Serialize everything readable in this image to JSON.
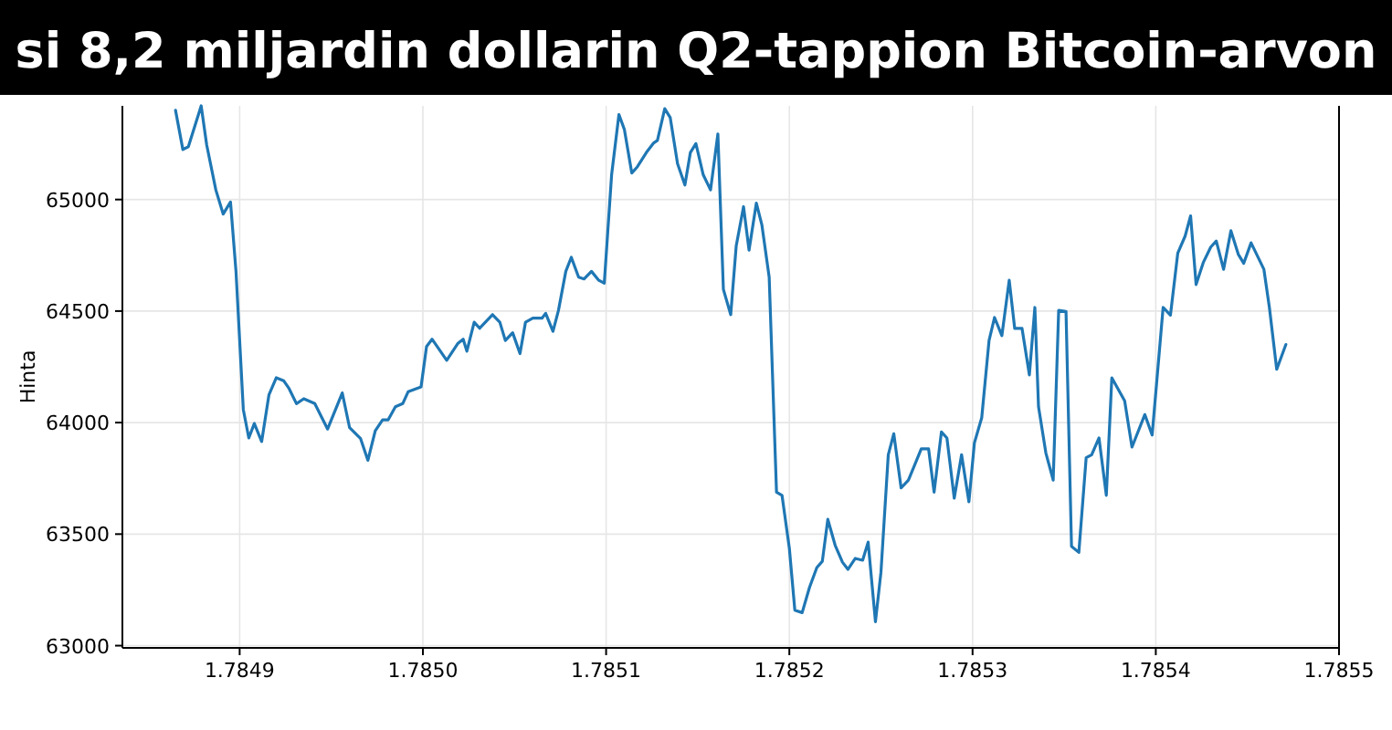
{
  "chart_data": {
    "type": "line",
    "title": "si 8,2 miljardin dollarin Q2-tappion Bitcoin-arvon",
    "ylabel": "Hinta",
    "xlim": [
      1.784836,
      1.7855
    ],
    "ylim": [
      62990,
      65420
    ],
    "xticks": [
      1.7849,
      {
        "value": 1.785,
        "label": "1.7850"
      },
      1.7851,
      1.7852,
      1.7853,
      1.7854,
      1.7855
    ],
    "yticks": [
      63000,
      63500,
      64000,
      64500,
      65000
    ],
    "grid": true,
    "series": [
      {
        "color": "#1f77b4",
        "x": [
          1.784865,
          1.784869,
          1.784872,
          1.784879,
          1.784882,
          1.784887,
          1.784891,
          1.784895,
          1.784898,
          1.784902,
          1.784905,
          1.784908,
          1.784912,
          1.784916,
          1.78492,
          1.784924,
          1.784927,
          1.784931,
          1.784935,
          1.784941,
          1.784948,
          1.784956,
          1.78496,
          1.784966,
          1.78497,
          1.784974,
          1.784978,
          1.784981,
          1.784985,
          1.784989,
          1.784992,
          1.784999,
          1.785002,
          1.785005,
          1.785013,
          1.785019,
          1.785022,
          1.785024,
          1.785028,
          1.785031,
          1.785038,
          1.785042,
          1.785045,
          1.785049,
          1.785053,
          1.785056,
          1.78506,
          1.785065,
          1.785067,
          1.785071,
          1.785074,
          1.785078,
          1.785081,
          1.785085,
          1.785088,
          1.785092,
          1.785096,
          1.785099,
          1.785103,
          1.785107,
          1.78511,
          1.785114,
          1.785117,
          1.785122,
          1.785126,
          1.785128,
          1.785132,
          1.785135,
          1.785139,
          1.785143,
          1.785146,
          1.785149,
          1.785153,
          1.785157,
          1.785161,
          1.785164,
          1.785168,
          1.785171,
          1.785175,
          1.785178,
          1.785182,
          1.785185,
          1.785189,
          1.785193,
          1.785196,
          1.7852,
          1.785203,
          1.785207,
          1.785211,
          1.785215,
          1.785218,
          1.785221,
          1.785225,
          1.785229,
          1.785232,
          1.785236,
          1.78524,
          1.785243,
          1.785247,
          1.78525,
          1.785254,
          1.785257,
          1.785261,
          1.785265,
          1.785272,
          1.785276,
          1.785279,
          1.785283,
          1.785286,
          1.78529,
          1.785294,
          1.785298,
          1.785301,
          1.785305,
          1.785309,
          1.785312,
          1.785316,
          1.78532,
          1.785323,
          1.785327,
          1.785331,
          1.785334,
          1.785336,
          1.78534,
          1.785344,
          1.785347,
          1.785351,
          1.785354,
          1.785358,
          1.785362,
          1.785365,
          1.785369,
          1.785373,
          1.785376,
          1.785383,
          1.785387,
          1.785394,
          1.785398,
          1.785404,
          1.785408,
          1.785412,
          1.785416,
          1.785419,
          1.785422,
          1.785426,
          1.78543,
          1.785433,
          1.785437,
          1.785441,
          1.785445,
          1.785448,
          1.785452,
          1.785459,
          1.785462,
          1.785466,
          1.785471
        ],
        "values": [
          65400,
          65224,
          65237,
          65420,
          65245,
          65043,
          64935,
          64989,
          64678,
          64058,
          63931,
          63996,
          63915,
          64125,
          64201,
          64188,
          64152,
          64085,
          64107,
          64085,
          63971,
          64133,
          63977,
          63928,
          63831,
          63963,
          64012,
          64012,
          64071,
          64085,
          64139,
          64160,
          64341,
          64374,
          64279,
          64354,
          64374,
          64320,
          64450,
          64423,
          64484,
          64450,
          64368,
          64403,
          64309,
          64450,
          64468,
          64468,
          64490,
          64409,
          64503,
          64678,
          64741,
          64652,
          64644,
          64678,
          64638,
          64625,
          65111,
          65381,
          65313,
          65119,
          65146,
          65211,
          65254,
          65265,
          65407,
          65367,
          65160,
          65065,
          65211,
          65251,
          65111,
          65043,
          65294,
          64597,
          64484,
          64792,
          64968,
          64773,
          64984,
          64887,
          64652,
          63688,
          63674,
          63437,
          63159,
          63148,
          63261,
          63350,
          63378,
          63566,
          63450,
          63374,
          63342,
          63391,
          63383,
          63464,
          63107,
          63329,
          63856,
          63950,
          63707,
          63742,
          63882,
          63882,
          63688,
          63958,
          63931,
          63661,
          63856,
          63645,
          63909,
          64022,
          64368,
          64471,
          64390,
          64638,
          64422,
          64422,
          64214,
          64516,
          64071,
          63864,
          63742,
          64503,
          64498,
          63445,
          63418,
          63842,
          63856,
          63931,
          63674,
          64201,
          64098,
          63890,
          64036,
          63944,
          64516,
          64482,
          64760,
          64836,
          64927,
          64619,
          64719,
          64787,
          64814,
          64687,
          64860,
          64755,
          64714,
          64806,
          64687,
          64516,
          64239,
          64350
        ]
      }
    ]
  }
}
